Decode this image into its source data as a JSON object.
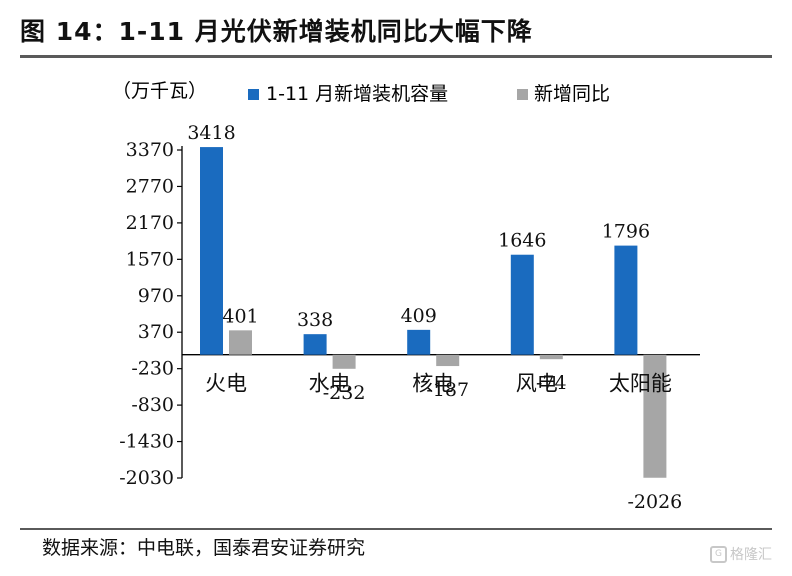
{
  "title": "图 14：1-11 月光伏新增装机同比大幅下降",
  "source": "数据来源：中电联，国泰君安证券研究",
  "watermark": "格隆汇",
  "chart_data": {
    "type": "bar",
    "unit_label": "（万千瓦）",
    "categories": [
      "火电",
      "水电",
      "核电",
      "风电",
      "太阳能"
    ],
    "series": [
      {
        "name": "1-11 月新增装机容量",
        "color": "#1a6bbf",
        "values": [
          3418,
          338,
          409,
          1646,
          1796
        ],
        "labels": [
          "3418",
          "338",
          "409",
          "1646",
          "1796"
        ]
      },
      {
        "name": "新增同比",
        "color": "#a6a6a6",
        "values": [
          401,
          -232,
          -187,
          -74,
          -2026
        ],
        "labels": [
          "401",
          "-232",
          "-187",
          "-74",
          "-2026"
        ]
      }
    ],
    "y_ticks": [
      3370,
      2770,
      2170,
      1570,
      970,
      370,
      -230,
      -830,
      -1430,
      -2030
    ],
    "y_tick_labels": [
      "3370",
      "2770",
      "2170",
      "1570",
      "970",
      "370",
      "-230",
      "-830",
      "-1430",
      "-2030"
    ],
    "ylim": [
      -2030,
      3370
    ],
    "legend_position": "top",
    "grid": false
  }
}
